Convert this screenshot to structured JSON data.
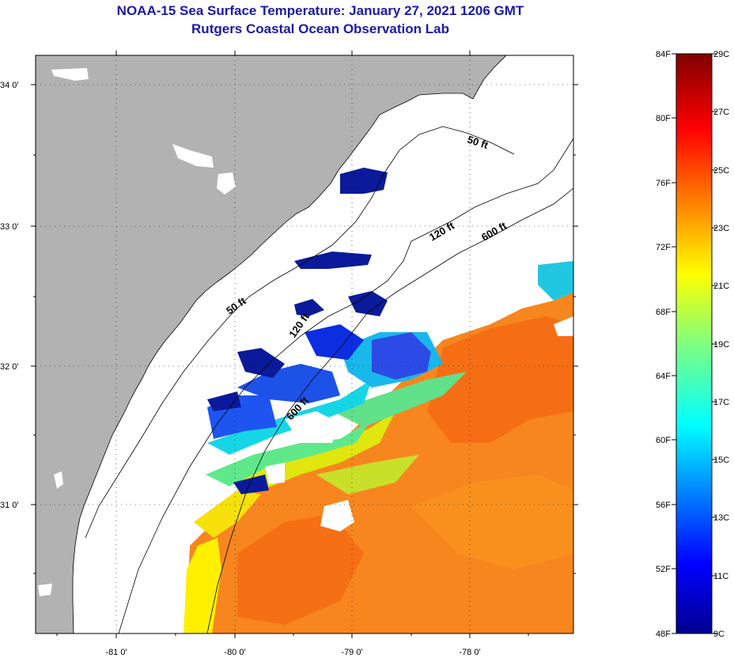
{
  "header": {
    "title": "NOAA-15 Sea Surface Temperature:  January 27, 2021 1206 GMT",
    "subtitle": "Rutgers Coastal Ocean Observation Lab"
  },
  "map": {
    "lat_labels": [
      "34 0'",
      "33 0'",
      "32 0'",
      "31 0'"
    ],
    "lon_labels": [
      "-81 0'",
      "-80 0'",
      "-79 0'",
      "-78 0'"
    ],
    "contours": [
      "50 ft",
      "50 ft",
      "120 ft",
      "120 ft",
      "600 ft",
      "600 ft"
    ],
    "colors": {
      "land": "#b2b2b2",
      "ocean_nodata": "#ffffff"
    }
  },
  "colorbar": {
    "f_labels": [
      "84F",
      "80F",
      "76F",
      "72F",
      "68F",
      "64F",
      "60F",
      "56F",
      "52F",
      "48F"
    ],
    "c_labels": [
      "29C",
      "27C",
      "25C",
      "23C",
      "21C",
      "19C",
      "17C",
      "15C",
      "13C",
      "11C",
      "9C"
    ],
    "range_c": [
      9,
      29
    ]
  }
}
